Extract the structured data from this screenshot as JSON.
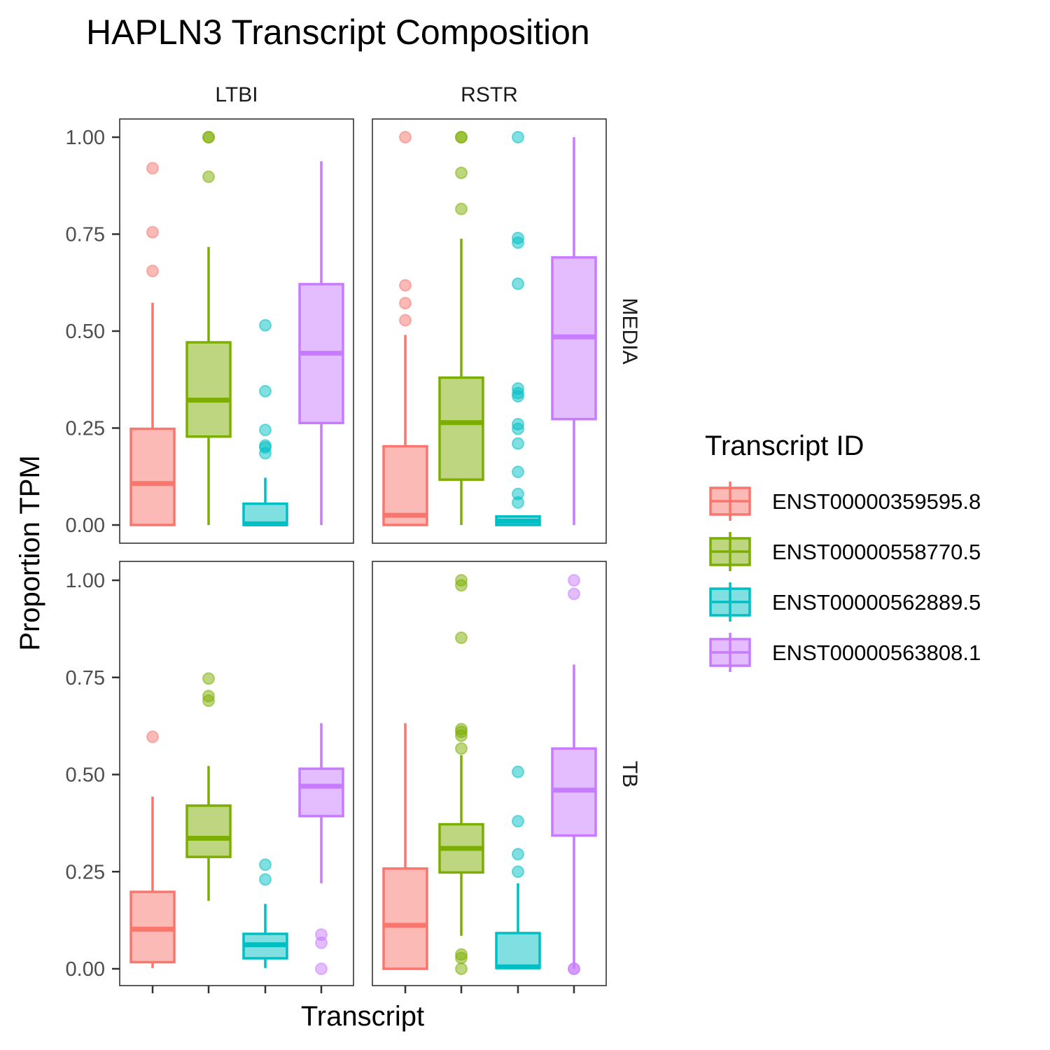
{
  "chart_data": {
    "type": "boxplot",
    "title": "HAPLN3 Transcript Composition",
    "xlabel": "Transcript",
    "ylabel": "Proportion TPM",
    "ylim": [
      0,
      1
    ],
    "y_ticks": [
      "0.00",
      "0.25",
      "0.50",
      "0.75",
      "1.00"
    ],
    "grid": false,
    "legend_placement": "right",
    "facet_cols": [
      "LTBI",
      "RSTR"
    ],
    "facet_rows": [
      "MEDIA",
      "TB"
    ],
    "legend": {
      "title": "Transcript ID",
      "items": [
        "ENST00000359595.8",
        "ENST00000558770.5",
        "ENST00000562889.5",
        "ENST00000563808.1"
      ]
    },
    "colors": [
      "#F8766D",
      "#7CAE00",
      "#00BFC4",
      "#C77CFF"
    ],
    "panels": [
      {
        "col": "LTBI",
        "row": "MEDIA",
        "boxes": [
          {
            "transcript": "ENST00000359595.8",
            "whisker_low": 0.0,
            "q1": 0.0,
            "median": 0.107,
            "q3": 0.248,
            "whisker_high": 0.573,
            "outliers": [
              0.655,
              0.755,
              0.92
            ]
          },
          {
            "transcript": "ENST00000558770.5",
            "whisker_low": 0.0,
            "q1": 0.228,
            "median": 0.322,
            "q3": 0.471,
            "whisker_high": 0.717,
            "outliers": [
              0.898,
              1.0,
              1.0
            ]
          },
          {
            "transcript": "ENST00000562889.5",
            "whisker_low": 0.0,
            "q1": 0.0,
            "median": 0.003,
            "q3": 0.055,
            "whisker_high": 0.122,
            "outliers": [
              0.185,
              0.2,
              0.205,
              0.245,
              0.345,
              0.515
            ]
          },
          {
            "transcript": "ENST00000563808.1",
            "whisker_low": 0.0,
            "q1": 0.263,
            "median": 0.443,
            "q3": 0.621,
            "whisker_high": 0.938,
            "outliers": []
          }
        ]
      },
      {
        "col": "RSTR",
        "row": "MEDIA",
        "boxes": [
          {
            "transcript": "ENST00000359595.8",
            "whisker_low": 0.0,
            "q1": 0.0,
            "median": 0.025,
            "q3": 0.203,
            "whisker_high": 0.49,
            "outliers": [
              0.528,
              0.572,
              0.618,
              1.0
            ]
          },
          {
            "transcript": "ENST00000558770.5",
            "whisker_low": 0.0,
            "q1": 0.117,
            "median": 0.264,
            "q3": 0.38,
            "whisker_high": 0.738,
            "outliers": [
              0.815,
              0.908,
              1.0,
              1.0
            ]
          },
          {
            "transcript": "ENST00000562889.5",
            "whisker_low": 0.0,
            "q1": 0.0,
            "median": 0.01,
            "q3": 0.022,
            "whisker_high": 0.022,
            "outliers": [
              0.058,
              0.08,
              0.137,
              0.21,
              0.248,
              0.26,
              0.332,
              0.34,
              0.352,
              0.622,
              0.728,
              0.74,
              1.0
            ]
          },
          {
            "transcript": "ENST00000563808.1",
            "whisker_low": 0.0,
            "q1": 0.273,
            "median": 0.485,
            "q3": 0.69,
            "whisker_high": 1.0,
            "outliers": []
          }
        ]
      },
      {
        "col": "LTBI",
        "row": "TB",
        "boxes": [
          {
            "transcript": "ENST00000359595.8",
            "whisker_low": 0.002,
            "q1": 0.017,
            "median": 0.102,
            "q3": 0.198,
            "whisker_high": 0.443,
            "outliers": [
              0.597
            ]
          },
          {
            "transcript": "ENST00000558770.5",
            "whisker_low": 0.175,
            "q1": 0.288,
            "median": 0.336,
            "q3": 0.42,
            "whisker_high": 0.522,
            "outliers": [
              0.69,
              0.702,
              0.747
            ]
          },
          {
            "transcript": "ENST00000562889.5",
            "whisker_low": 0.002,
            "q1": 0.027,
            "median": 0.062,
            "q3": 0.09,
            "whisker_high": 0.167,
            "outliers": [
              0.23,
              0.268
            ]
          },
          {
            "transcript": "ENST00000563808.1",
            "whisker_low": 0.22,
            "q1": 0.393,
            "median": 0.47,
            "q3": 0.515,
            "whisker_high": 0.632,
            "outliers": [
              0.0,
              0.067,
              0.088
            ]
          }
        ]
      },
      {
        "col": "RSTR",
        "row": "TB",
        "boxes": [
          {
            "transcript": "ENST00000359595.8",
            "whisker_low": 0.0,
            "q1": 0.0,
            "median": 0.112,
            "q3": 0.258,
            "whisker_high": 0.632,
            "outliers": []
          },
          {
            "transcript": "ENST00000558770.5",
            "whisker_low": 0.085,
            "q1": 0.248,
            "median": 0.31,
            "q3": 0.372,
            "whisker_high": 0.55,
            "outliers": [
              0.0,
              0.028,
              0.037,
              0.567,
              0.6,
              0.61,
              0.617,
              0.852,
              0.987,
              1.0
            ]
          },
          {
            "transcript": "ENST00000562889.5",
            "whisker_low": 0.0,
            "q1": 0.002,
            "median": 0.005,
            "q3": 0.092,
            "whisker_high": 0.22,
            "outliers": [
              0.25,
              0.295,
              0.38,
              0.507
            ]
          },
          {
            "transcript": "ENST00000563808.1",
            "whisker_low": 0.0,
            "q1": 0.343,
            "median": 0.46,
            "q3": 0.567,
            "whisker_high": 0.783,
            "outliers": [
              0.0,
              0.0,
              0.965,
              1.0
            ]
          }
        ]
      }
    ]
  }
}
